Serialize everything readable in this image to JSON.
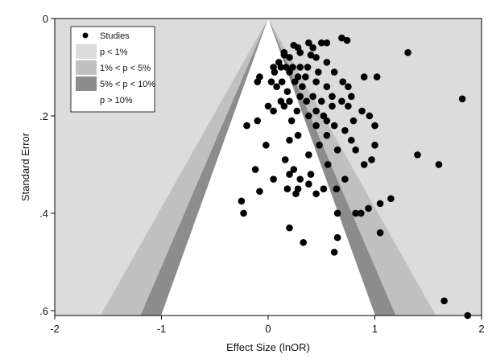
{
  "chart_data": {
    "type": "scatter",
    "title": "",
    "xlabel": "Effect Size (lnOR)",
    "ylabel": "Standard Error",
    "xlim": [
      -2,
      2
    ],
    "ylim": [
      0,
      0.61
    ],
    "y_reversed": true,
    "x_ticks": [
      -2,
      -1,
      0,
      1,
      2
    ],
    "x_tick_labels": [
      "-2",
      "-1",
      "0",
      "1",
      "2"
    ],
    "y_ticks": [
      0,
      0.2,
      0.4,
      0.6
    ],
    "y_tick_labels": [
      "0",
      ".2",
      ".4",
      ".6"
    ],
    "grid": false,
    "legend_position": "top-left",
    "legend": [
      {
        "label": "Studies",
        "kind": "marker"
      },
      {
        "label": "p < 1%",
        "kind": "region"
      },
      {
        "label": "1% < p < 5%",
        "kind": "region"
      },
      {
        "label": "5% < p < 10%",
        "kind": "region"
      },
      {
        "label": "p > 10%",
        "kind": "region"
      }
    ],
    "contours": [
      {
        "label": "p > 10%",
        "z": 1.645,
        "color": "#ffffff"
      },
      {
        "label": "5% < p < 10%",
        "z": 1.96,
        "color": "#8c8c8c"
      },
      {
        "label": "1% < p < 5%",
        "z": 2.576,
        "color": "#c0c0c0"
      },
      {
        "label": "p < 1%",
        "z": null,
        "color": "#dcdcdc"
      }
    ],
    "series": [
      {
        "name": "Studies",
        "color": "#000000",
        "points": [
          [
            0.69,
            0.04
          ],
          [
            0.74,
            0.045
          ],
          [
            0.38,
            0.05
          ],
          [
            0.5,
            0.05
          ],
          [
            0.55,
            0.05
          ],
          [
            0.24,
            0.055
          ],
          [
            0.15,
            0.07
          ],
          [
            0.28,
            0.06
          ],
          [
            0.42,
            0.06
          ],
          [
            0.2,
            0.08
          ],
          [
            0.3,
            0.07
          ],
          [
            0.1,
            0.09
          ],
          [
            1.31,
            0.07
          ],
          [
            0.15,
            0.075
          ],
          [
            0.4,
            0.075
          ],
          [
            0.45,
            0.08
          ],
          [
            0.55,
            0.09
          ],
          [
            0.05,
            0.1
          ],
          [
            0.12,
            0.1
          ],
          [
            0.17,
            0.1
          ],
          [
            0.23,
            0.1
          ],
          [
            0.3,
            0.1
          ],
          [
            0.37,
            0.1
          ],
          [
            0.06,
            0.11
          ],
          [
            0.2,
            0.11
          ],
          [
            -0.08,
            0.12
          ],
          [
            0.28,
            0.12
          ],
          [
            0.35,
            0.12
          ],
          [
            0.47,
            0.11
          ],
          [
            0.62,
            0.11
          ],
          [
            0.9,
            0.12
          ],
          [
            1.02,
            0.12
          ],
          [
            -0.1,
            0.13
          ],
          [
            0.03,
            0.13
          ],
          [
            0.13,
            0.13
          ],
          [
            0.25,
            0.13
          ],
          [
            0.45,
            0.13
          ],
          [
            0.7,
            0.13
          ],
          [
            0.08,
            0.14
          ],
          [
            0.18,
            0.15
          ],
          [
            0.32,
            0.14
          ],
          [
            0.55,
            0.14
          ],
          [
            0.75,
            0.14
          ],
          [
            0.3,
            0.16
          ],
          [
            0.42,
            0.16
          ],
          [
            0.6,
            0.16
          ],
          [
            0.78,
            0.16
          ],
          [
            1.82,
            0.165
          ],
          [
            0.12,
            0.17
          ],
          [
            0.2,
            0.17
          ],
          [
            0.36,
            0.17
          ],
          [
            0.5,
            0.17
          ],
          [
            0.69,
            0.17
          ],
          [
            0.0,
            0.18
          ],
          [
            0.15,
            0.18
          ],
          [
            0.27,
            0.19
          ],
          [
            0.45,
            0.19
          ],
          [
            0.6,
            0.18
          ],
          [
            0.75,
            0.18
          ],
          [
            0.05,
            0.19
          ],
          [
            0.38,
            0.2
          ],
          [
            0.52,
            0.2
          ],
          [
            0.88,
            0.19
          ],
          [
            -0.1,
            0.21
          ],
          [
            0.22,
            0.21
          ],
          [
            0.55,
            0.21
          ],
          [
            0.8,
            0.21
          ],
          [
            -0.2,
            0.22
          ],
          [
            0.45,
            0.22
          ],
          [
            0.95,
            0.2
          ],
          [
            0.62,
            0.22
          ],
          [
            0.72,
            0.23
          ],
          [
            0.28,
            0.24
          ],
          [
            0.55,
            0.24
          ],
          [
            1.0,
            0.22
          ],
          [
            0.78,
            0.25
          ],
          [
            0.2,
            0.25
          ],
          [
            0.82,
            0.27
          ],
          [
            -0.02,
            0.26
          ],
          [
            0.48,
            0.26
          ],
          [
            1.0,
            0.26
          ],
          [
            0.65,
            0.27
          ],
          [
            0.38,
            0.28
          ],
          [
            0.97,
            0.29
          ],
          [
            0.16,
            0.29
          ],
          [
            1.4,
            0.28
          ],
          [
            0.56,
            0.3
          ],
          [
            0.9,
            0.3
          ],
          [
            0.24,
            0.31
          ],
          [
            1.6,
            0.3
          ],
          [
            -0.12,
            0.31
          ],
          [
            0.3,
            0.33
          ],
          [
            0.2,
            0.32
          ],
          [
            0.4,
            0.32
          ],
          [
            0.72,
            0.33
          ],
          [
            0.05,
            0.33
          ],
          [
            0.38,
            0.34
          ],
          [
            0.52,
            0.35
          ],
          [
            0.64,
            0.35
          ],
          [
            0.28,
            0.35
          ],
          [
            0.18,
            0.35
          ],
          [
            -0.08,
            0.355
          ],
          [
            0.45,
            0.36
          ],
          [
            0.26,
            0.36
          ],
          [
            1.15,
            0.37
          ],
          [
            -0.25,
            0.375
          ],
          [
            0.65,
            0.4
          ],
          [
            0.82,
            0.4
          ],
          [
            0.87,
            0.4
          ],
          [
            0.94,
            0.39
          ],
          [
            1.05,
            0.38
          ],
          [
            -0.23,
            0.4
          ],
          [
            0.2,
            0.43
          ],
          [
            1.05,
            0.44
          ],
          [
            0.65,
            0.45
          ],
          [
            0.33,
            0.46
          ],
          [
            0.62,
            0.48
          ],
          [
            1.65,
            0.58
          ],
          [
            1.87,
            0.61
          ]
        ]
      }
    ]
  }
}
